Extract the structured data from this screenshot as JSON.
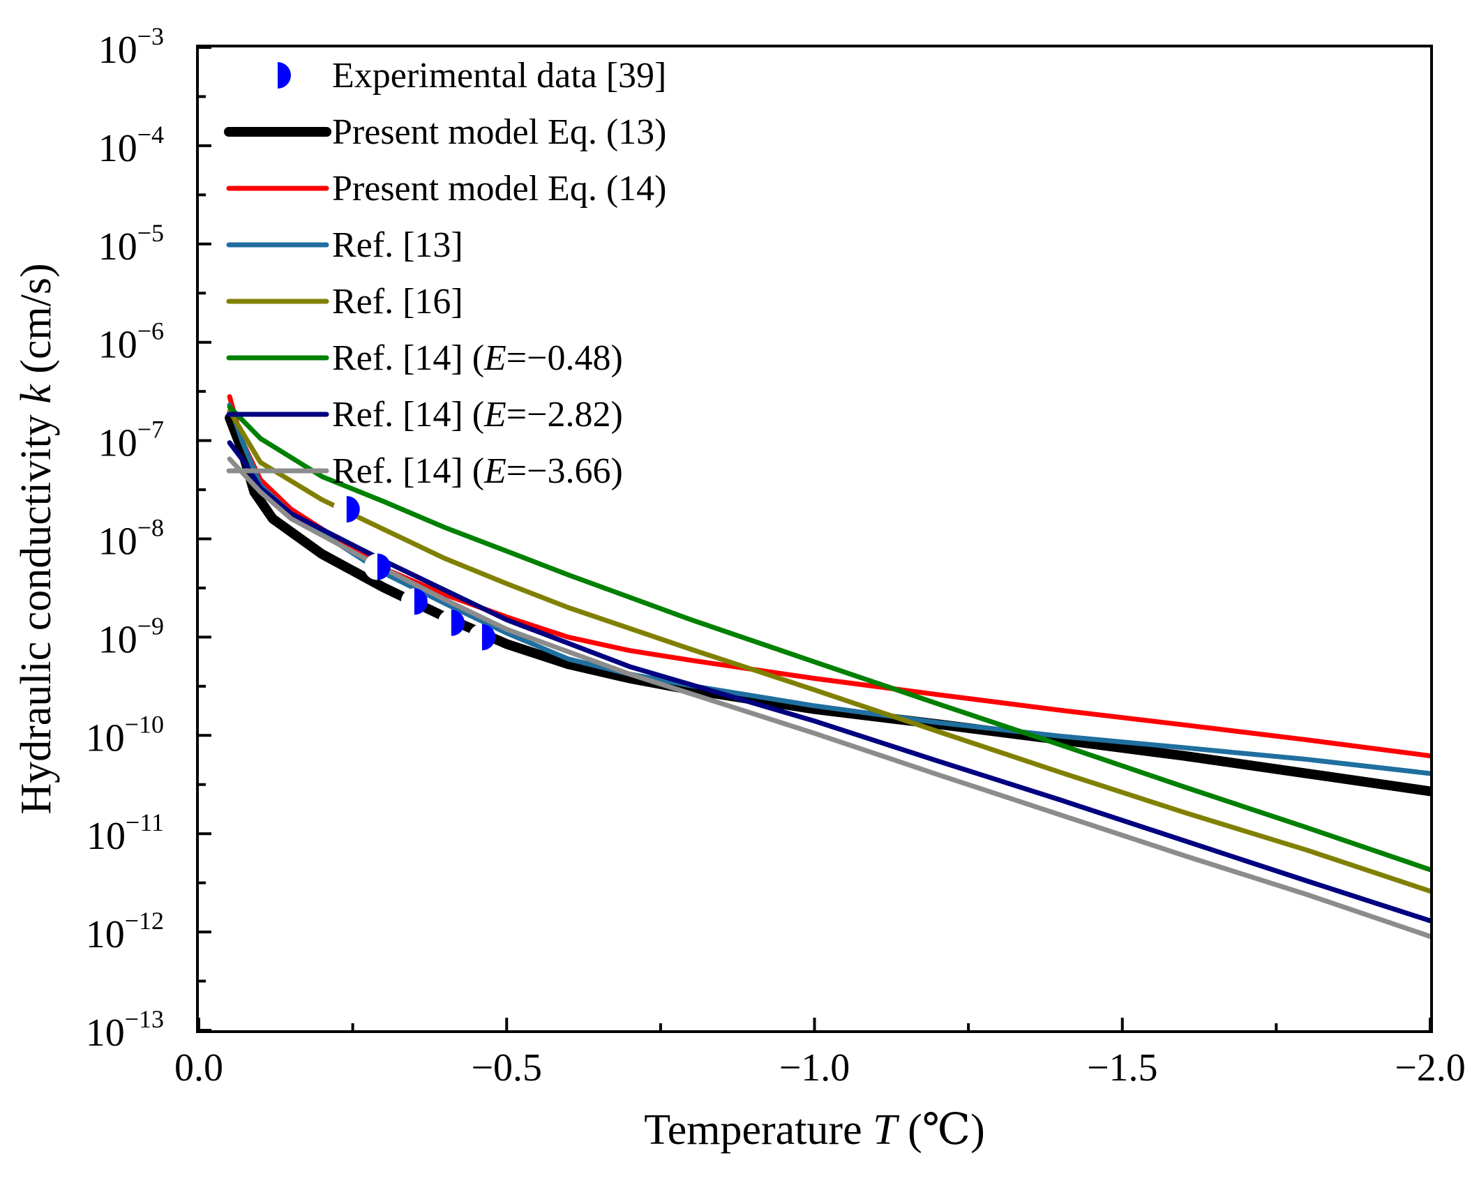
{
  "chart_data": {
    "type": "line",
    "title": "",
    "xlabel": "Temperature",
    "xlabel_var": "T",
    "xlabel_unit": "(℃)",
    "ylabel": "Hydraulic conductivity",
    "ylabel_var": "k",
    "ylabel_unit": "(cm/s)",
    "xlim": [
      0.0,
      -2.0
    ],
    "ylim_log10": [
      -13,
      -3
    ],
    "y_scale": "log",
    "x_ticks": [
      0.0,
      -0.5,
      -1.0,
      -1.5,
      -2.0
    ],
    "x_tick_labels": [
      "0.0",
      "−0.5",
      "−1.0",
      "−1.5",
      "−2.0"
    ],
    "y_tick_labels": [
      {
        "base": "10",
        "exp": "−3"
      },
      {
        "base": "10",
        "exp": "−4"
      },
      {
        "base": "10",
        "exp": "−5"
      },
      {
        "base": "10",
        "exp": "−6"
      },
      {
        "base": "10",
        "exp": "−7"
      },
      {
        "base": "10",
        "exp": "−8"
      },
      {
        "base": "10",
        "exp": "−9"
      },
      {
        "base": "10",
        "exp": "−10"
      },
      {
        "base": "10",
        "exp": "−11"
      },
      {
        "base": "10",
        "exp": "−12"
      },
      {
        "base": "10",
        "exp": "−13"
      }
    ],
    "legend_position": "top-left",
    "series": [
      {
        "name": "Present model Eq. (13)",
        "label_parts": [
          "Present model Eq. (13)"
        ],
        "color": "#000000",
        "width": "thick",
        "points": [
          [
            -0.05,
            1.7e-07
          ],
          [
            -0.07,
            8e-08
          ],
          [
            -0.09,
            3e-08
          ],
          [
            -0.12,
            1.6e-08
          ],
          [
            -0.2,
            7e-09
          ],
          [
            -0.3,
            3.2e-09
          ],
          [
            -0.4,
            1.6e-09
          ],
          [
            -0.5,
            8.5e-10
          ],
          [
            -0.6,
            5.3e-10
          ],
          [
            -0.7,
            3.8e-10
          ],
          [
            -0.8,
            2.9e-10
          ],
          [
            -1.0,
            1.85e-10
          ],
          [
            -1.2,
            1.3e-10
          ],
          [
            -1.4,
            9e-11
          ],
          [
            -1.6,
            6.2e-11
          ],
          [
            -1.8,
            4.1e-11
          ],
          [
            -2.0,
            2.7e-11
          ]
        ]
      },
      {
        "name": "Present model Eq. (14)",
        "label_parts": [
          "Present model Eq. (14)"
        ],
        "color": "#ff0000",
        "width": "normal",
        "points": [
          [
            -0.05,
            2.8e-07
          ],
          [
            -0.07,
            1e-07
          ],
          [
            -0.1,
            4e-08
          ],
          [
            -0.15,
            2e-08
          ],
          [
            -0.3,
            5e-09
          ],
          [
            -0.4,
            2.7e-09
          ],
          [
            -0.5,
            1.6e-09
          ],
          [
            -0.6,
            1e-09
          ],
          [
            -0.7,
            7.3e-10
          ],
          [
            -0.8,
            5.8e-10
          ],
          [
            -1.0,
            3.8e-10
          ],
          [
            -1.2,
            2.6e-10
          ],
          [
            -1.4,
            1.8e-10
          ],
          [
            -1.6,
            1.28e-10
          ],
          [
            -1.8,
            9e-11
          ],
          [
            -2.0,
            6.2e-11
          ]
        ]
      },
      {
        "name": "Ref. [13]",
        "label_parts": [
          "Ref. [13]"
        ],
        "color": "#1f6f9f",
        "width": "normal",
        "points": [
          [
            -0.05,
            2.3e-07
          ],
          [
            -0.07,
            1e-07
          ],
          [
            -0.1,
            3.5e-08
          ],
          [
            -0.15,
            1.8e-08
          ],
          [
            -0.3,
            4.5e-09
          ],
          [
            -0.4,
            2.2e-09
          ],
          [
            -0.5,
            1.1e-09
          ],
          [
            -0.6,
            6e-10
          ],
          [
            -0.7,
            4.2e-10
          ],
          [
            -0.8,
            3.2e-10
          ],
          [
            -1.0,
            2e-10
          ],
          [
            -1.2,
            1.35e-10
          ],
          [
            -1.4,
            9.8e-11
          ],
          [
            -1.6,
            7.5e-11
          ],
          [
            -1.8,
            5.7e-11
          ],
          [
            -2.0,
            4.1e-11
          ]
        ]
      },
      {
        "name": "Ref. [16]",
        "label_parts": [
          "Ref. [16]"
        ],
        "color": "#808000",
        "width": "normal",
        "points": [
          [
            -0.05,
            2e-07
          ],
          [
            -0.1,
            6e-08
          ],
          [
            -0.2,
            2.5e-08
          ],
          [
            -0.3,
            1.25e-08
          ],
          [
            -0.4,
            6.3e-09
          ],
          [
            -0.5,
            3.5e-09
          ],
          [
            -0.6,
            2e-09
          ],
          [
            -0.8,
            7.5e-10
          ],
          [
            -1.0,
            2.9e-10
          ],
          [
            -1.2,
            1.1e-10
          ],
          [
            -1.4,
            4.2e-11
          ],
          [
            -1.6,
            1.65e-11
          ],
          [
            -1.8,
            6.8e-12
          ],
          [
            -2.0,
            2.6e-12
          ]
        ]
      },
      {
        "name": "Ref. [14] (E=−0.48)",
        "label_parts": [
          "Ref. [14] (",
          "E",
          "=−0.48)"
        ],
        "color": "#008000",
        "width": "normal",
        "points": [
          [
            -0.05,
            2.2e-07
          ],
          [
            -0.1,
            1.05e-07
          ],
          [
            -0.2,
            4.3e-08
          ],
          [
            -0.3,
            2.4e-08
          ],
          [
            -0.4,
            1.3e-08
          ],
          [
            -0.5,
            7.5e-09
          ],
          [
            -0.6,
            4.3e-09
          ],
          [
            -0.8,
            1.5e-09
          ],
          [
            -1.0,
            5.6e-10
          ],
          [
            -1.2,
            2.1e-10
          ],
          [
            -1.4,
            8e-11
          ],
          [
            -1.6,
            3e-11
          ],
          [
            -1.8,
            1.15e-11
          ],
          [
            -2.0,
            4.3e-12
          ]
        ]
      },
      {
        "name": "Ref. [14] (E=−2.82)",
        "label_parts": [
          "Ref. [14] (",
          "E",
          "=−2.82)"
        ],
        "color": "#000080",
        "width": "normal",
        "points": [
          [
            -0.05,
            9.5e-08
          ],
          [
            -0.07,
            6.5e-08
          ],
          [
            -0.1,
            3.3e-08
          ],
          [
            -0.15,
            1.8e-08
          ],
          [
            -0.3,
            6e-09
          ],
          [
            -0.4,
            3e-09
          ],
          [
            -0.5,
            1.5e-09
          ],
          [
            -0.7,
            5e-10
          ],
          [
            -1.0,
            1.4e-10
          ],
          [
            -1.2,
            5.5e-11
          ],
          [
            -1.4,
            2.2e-11
          ],
          [
            -1.6,
            8.5e-12
          ],
          [
            -1.8,
            3.3e-12
          ],
          [
            -2.0,
            1.3e-12
          ]
        ]
      },
      {
        "name": "Ref. [14] (E=−3.66)",
        "label_parts": [
          "Ref. [14] (",
          "E",
          "=−3.66)"
        ],
        "color": "#8c8c8c",
        "width": "normal",
        "points": [
          [
            -0.05,
            6.5e-08
          ],
          [
            -0.1,
            3e-08
          ],
          [
            -0.15,
            1.6e-08
          ],
          [
            -0.3,
            5e-09
          ],
          [
            -0.4,
            2.4e-09
          ],
          [
            -0.5,
            1.2e-09
          ],
          [
            -0.7,
            4.2e-10
          ],
          [
            -1.0,
            1.05e-10
          ],
          [
            -1.2,
            4e-11
          ],
          [
            -1.4,
            1.55e-11
          ],
          [
            -1.6,
            6e-12
          ],
          [
            -1.8,
            2.4e-12
          ],
          [
            -2.0,
            9e-13
          ]
        ]
      }
    ],
    "scatter": {
      "name": "Experimental data [39]",
      "label_parts": [
        "Experimental data [39]"
      ],
      "fill_color": "#0000ff",
      "points": [
        [
          -0.24,
          2e-08
        ],
        [
          -0.29,
          5.2e-09
        ],
        [
          -0.35,
          2.3e-09
        ],
        [
          -0.41,
          1.4e-09
        ],
        [
          -0.46,
          1e-09
        ]
      ]
    },
    "legend_order": [
      "scatter",
      0,
      1,
      2,
      3,
      4,
      5,
      6
    ]
  }
}
